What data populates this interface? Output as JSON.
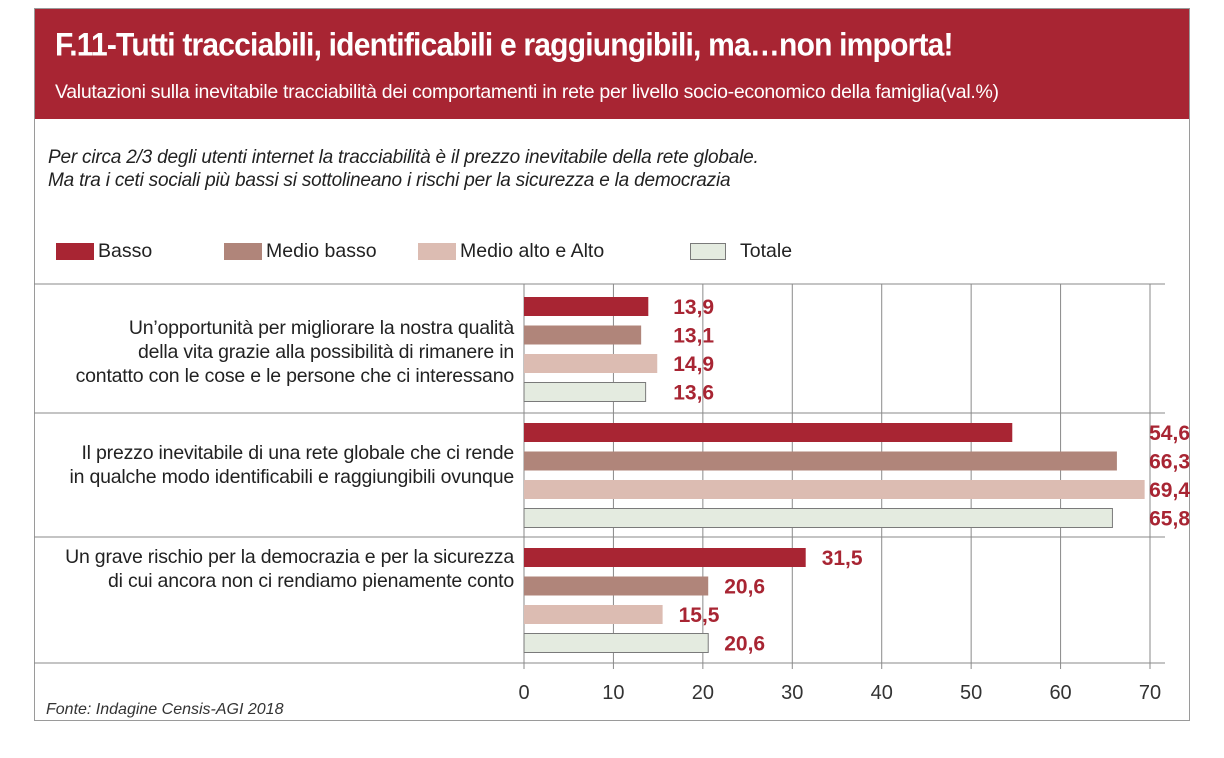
{
  "header": {
    "title": "F.11-Tutti tracciabili, identificabili e raggiungibili, ma…non importa!",
    "subtitle": "Valutazioni sulla inevitabile tracciabilità dei comportamenti in rete per livello socio-economico della famiglia(val.%)"
  },
  "intro": {
    "line1": "Per circa 2/3 degli utenti internet la tracciabilità è il prezzo inevitabile della rete globale.",
    "line2": "Ma tra i ceti sociali più bassi si sottolineano i rischi per la sicurezza e la democrazia"
  },
  "colors": {
    "header_bg": "#a82533",
    "basso": "#a82533",
    "medio_basso": "#b0857a",
    "medio_alto": "#dcbcb2",
    "totale": "#e4ebe0",
    "value_label": "#a82533"
  },
  "chart_data": {
    "type": "bar",
    "orientation": "horizontal",
    "categories": [
      [
        "Un’opportunità per migliorare la nostra qualità",
        "della vita grazie alla possibilità di rimanere in",
        "contatto con le cose e le persone che ci interessano"
      ],
      [
        "Il prezzo inevitabile di una rete globale che ci rende",
        "in qualche modo identificabili e raggiungibili ovunque"
      ],
      [
        "Un grave rischio per la democrazia e per la sicurezza",
        "di cui ancora non ci rendiamo pienamente conto"
      ]
    ],
    "series": [
      {
        "name": "Basso",
        "values": [
          13.9,
          54.6,
          31.5
        ],
        "labels": [
          "13,9",
          "54,6",
          "31,5"
        ]
      },
      {
        "name": "Medio basso",
        "values": [
          13.1,
          66.3,
          20.6
        ],
        "labels": [
          "13,1",
          "66,3",
          "20,6"
        ]
      },
      {
        "name": "Medio alto e Alto",
        "values": [
          14.9,
          69.4,
          15.5
        ],
        "labels": [
          "14,9",
          "69,4",
          "15,5"
        ]
      },
      {
        "name": "Totale",
        "values": [
          13.6,
          65.8,
          20.6
        ],
        "labels": [
          "13,6",
          "65,8",
          "20,6"
        ]
      }
    ],
    "xlim": [
      0,
      70
    ],
    "xticks": [
      "0",
      "10",
      "20",
      "30",
      "40",
      "50",
      "60",
      "70"
    ],
    "grid": true,
    "legend_position": "top"
  },
  "source": "Fonte: Indagine Censis-AGI 2018"
}
